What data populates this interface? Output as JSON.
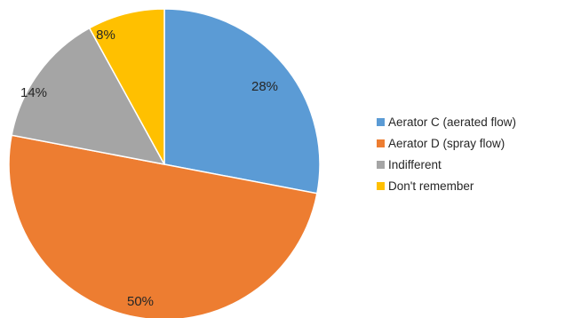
{
  "chart_data": {
    "type": "pie",
    "title": "",
    "legend_position": "right",
    "start_angle_deg": 0,
    "direction": "clockwise",
    "slices": [
      {
        "label": "Aerator C (aerated flow)",
        "value": 28,
        "value_label": "28%",
        "color": "#5B9BD5"
      },
      {
        "label": "Aerator D (spray flow)",
        "value": 50,
        "value_label": "50%",
        "color": "#ED7D31"
      },
      {
        "label": "Indifferent",
        "value": 14,
        "value_label": "14%",
        "color": "#A5A5A5"
      },
      {
        "label": "Don't remember",
        "value": 8,
        "value_label": "8%",
        "color": "#FFC000"
      }
    ]
  }
}
